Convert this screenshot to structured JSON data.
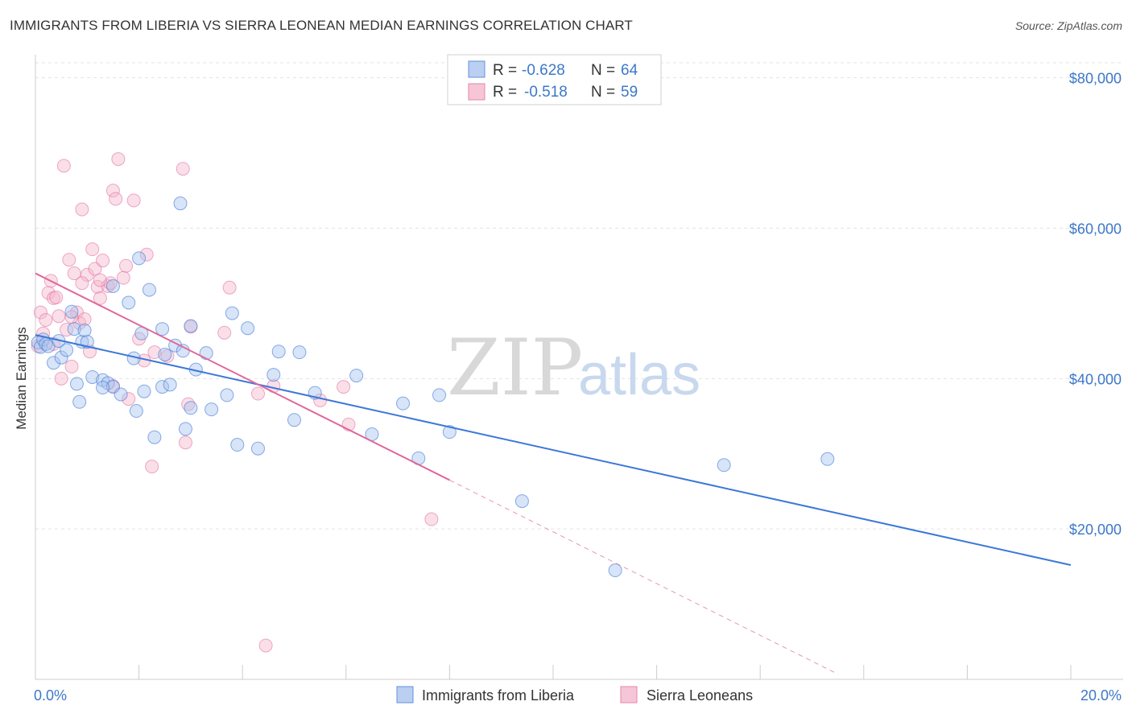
{
  "title": "IMMIGRANTS FROM LIBERIA VS SIERRA LEONEAN MEDIAN EARNINGS CORRELATION CHART",
  "source": "Source: ZipAtlas.com",
  "watermark": {
    "zip": "ZIP",
    "atlas": "atlas"
  },
  "colors": {
    "blue": "#3c78d8",
    "blue_fill": "#a9c4ee",
    "pink": "#e0689a",
    "pink_fill": "#f4b8cc",
    "tick_text": "#3c78c8"
  },
  "legend": {
    "row1": {
      "r_label": "R =",
      "r_value": "-0.628",
      "n_label": "N =",
      "n_value": "64"
    },
    "row2": {
      "r_label": "R =",
      "r_value": "-0.518",
      "n_label": "N =",
      "n_value": "59"
    }
  },
  "bottom_legend": {
    "series1": "Immigrants from Liberia",
    "series2": "Sierra Leoneans"
  },
  "chart_data": {
    "type": "scatter",
    "ylabel": "Median Earnings",
    "xlim": [
      0,
      20
    ],
    "ylim": [
      0,
      82000
    ],
    "x_tick_labels": [
      "0.0%",
      "20.0%"
    ],
    "y_ticks": [
      20000,
      40000,
      60000,
      80000
    ],
    "y_tick_labels": [
      "$20,000",
      "$40,000",
      "$60,000",
      "$80,000"
    ],
    "grid": "horizontal dashed",
    "series": [
      {
        "name": "Immigrants from Liberia",
        "color": "#3c78d8",
        "trend": {
          "x": [
            0,
            20
          ],
          "y": [
            45800,
            15200
          ],
          "style": "solid"
        },
        "points": [
          [
            0.05,
            44800
          ],
          [
            0.1,
            44200
          ],
          [
            0.15,
            45200
          ],
          [
            0.2,
            44600
          ],
          [
            0.25,
            44300
          ],
          [
            0.35,
            42100
          ],
          [
            0.45,
            45000
          ],
          [
            0.5,
            42800
          ],
          [
            0.6,
            43800
          ],
          [
            0.7,
            48900
          ],
          [
            0.75,
            46600
          ],
          [
            0.8,
            39300
          ],
          [
            0.85,
            36900
          ],
          [
            0.9,
            44900
          ],
          [
            0.95,
            46400
          ],
          [
            1.0,
            44900
          ],
          [
            1.1,
            40200
          ],
          [
            1.3,
            39800
          ],
          [
            1.4,
            39400
          ],
          [
            1.5,
            38900
          ],
          [
            1.5,
            52300
          ],
          [
            1.65,
            37900
          ],
          [
            1.8,
            50100
          ],
          [
            1.9,
            42700
          ],
          [
            1.95,
            35700
          ],
          [
            2.0,
            56000
          ],
          [
            2.05,
            46000
          ],
          [
            2.1,
            38300
          ],
          [
            2.2,
            51800
          ],
          [
            2.3,
            32200
          ],
          [
            2.45,
            38900
          ],
          [
            2.5,
            43200
          ],
          [
            2.6,
            39200
          ],
          [
            2.7,
            44400
          ],
          [
            2.8,
            63300
          ],
          [
            2.85,
            43700
          ],
          [
            2.9,
            33300
          ],
          [
            3.0,
            47000
          ],
          [
            3.0,
            36100
          ],
          [
            3.1,
            41200
          ],
          [
            3.3,
            43400
          ],
          [
            3.4,
            35900
          ],
          [
            3.7,
            37800
          ],
          [
            3.8,
            48700
          ],
          [
            3.9,
            31200
          ],
          [
            4.1,
            46700
          ],
          [
            4.3,
            30700
          ],
          [
            4.6,
            40500
          ],
          [
            4.7,
            43600
          ],
          [
            5.1,
            43500
          ],
          [
            5.0,
            34500
          ],
          [
            5.4,
            38100
          ],
          [
            6.2,
            40400
          ],
          [
            6.5,
            32600
          ],
          [
            7.1,
            36700
          ],
          [
            7.4,
            29400
          ],
          [
            7.8,
            37800
          ],
          [
            8.0,
            32900
          ],
          [
            9.4,
            23700
          ],
          [
            11.2,
            14500
          ],
          [
            13.3,
            28500
          ],
          [
            15.3,
            29300
          ],
          [
            2.45,
            46600
          ],
          [
            1.3,
            38800
          ]
        ]
      },
      {
        "name": "Sierra Leoneans",
        "color": "#e0689a",
        "trend": {
          "x": [
            0,
            8.0
          ],
          "y": [
            54000,
            26500
          ],
          "style": "solid"
        },
        "trend_dashed": {
          "x": [
            8.0,
            15.5
          ],
          "y": [
            26500,
            700
          ]
        },
        "points": [
          [
            0.05,
            44300
          ],
          [
            0.1,
            48800
          ],
          [
            0.15,
            46000
          ],
          [
            0.2,
            47800
          ],
          [
            0.25,
            51400
          ],
          [
            0.3,
            53000
          ],
          [
            0.35,
            50700
          ],
          [
            0.4,
            50800
          ],
          [
            0.45,
            48300
          ],
          [
            0.5,
            40000
          ],
          [
            0.55,
            68300
          ],
          [
            0.6,
            46500
          ],
          [
            0.65,
            55800
          ],
          [
            0.7,
            41600
          ],
          [
            0.75,
            54000
          ],
          [
            0.8,
            48800
          ],
          [
            0.85,
            47400
          ],
          [
            0.9,
            62500
          ],
          [
            0.95,
            47900
          ],
          [
            1.0,
            53800
          ],
          [
            1.05,
            43600
          ],
          [
            1.1,
            57200
          ],
          [
            1.15,
            54600
          ],
          [
            1.2,
            52200
          ],
          [
            1.25,
            50700
          ],
          [
            1.3,
            55700
          ],
          [
            1.4,
            52300
          ],
          [
            1.45,
            52700
          ],
          [
            1.5,
            39000
          ],
          [
            1.5,
            65000
          ],
          [
            1.55,
            63900
          ],
          [
            1.6,
            69200
          ],
          [
            1.7,
            53400
          ],
          [
            1.75,
            55000
          ],
          [
            1.8,
            37300
          ],
          [
            1.9,
            63700
          ],
          [
            2.0,
            45300
          ],
          [
            2.1,
            42400
          ],
          [
            2.15,
            56500
          ],
          [
            2.25,
            28300
          ],
          [
            2.55,
            43000
          ],
          [
            2.85,
            67900
          ],
          [
            2.9,
            31500
          ],
          [
            2.95,
            36600
          ],
          [
            3.0,
            46900
          ],
          [
            3.65,
            46100
          ],
          [
            3.75,
            52100
          ],
          [
            4.3,
            38000
          ],
          [
            4.45,
            4500
          ],
          [
            4.6,
            39000
          ],
          [
            5.5,
            37100
          ],
          [
            5.95,
            38900
          ],
          [
            6.05,
            33900
          ],
          [
            7.65,
            21300
          ],
          [
            1.25,
            53100
          ],
          [
            0.9,
            52700
          ],
          [
            2.3,
            43500
          ],
          [
            0.35,
            44600
          ],
          [
            0.7,
            48200
          ]
        ]
      }
    ]
  }
}
